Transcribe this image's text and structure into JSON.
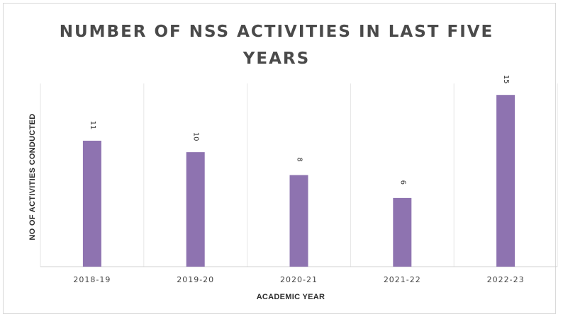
{
  "chart_data": {
    "type": "bar",
    "title": "NUMBER OF NSS ACTIVITIES IN LAST FIVE YEARS",
    "xlabel": "ACADEMIC YEAR",
    "ylabel": "NO OF ACTIVITIES CONDUCTED",
    "categories": [
      "2018-19",
      "2019-20",
      "2020-21",
      "2021-22",
      "2022-23"
    ],
    "values": [
      11,
      10,
      8,
      6,
      15
    ],
    "data_labels": [
      "11",
      "10",
      "8",
      "6",
      "15"
    ],
    "ylim": [
      0,
      16
    ],
    "grid": "vertical",
    "legend": "none",
    "bar_color": "#8e73b0",
    "grid_color": "#e6e6e6"
  }
}
